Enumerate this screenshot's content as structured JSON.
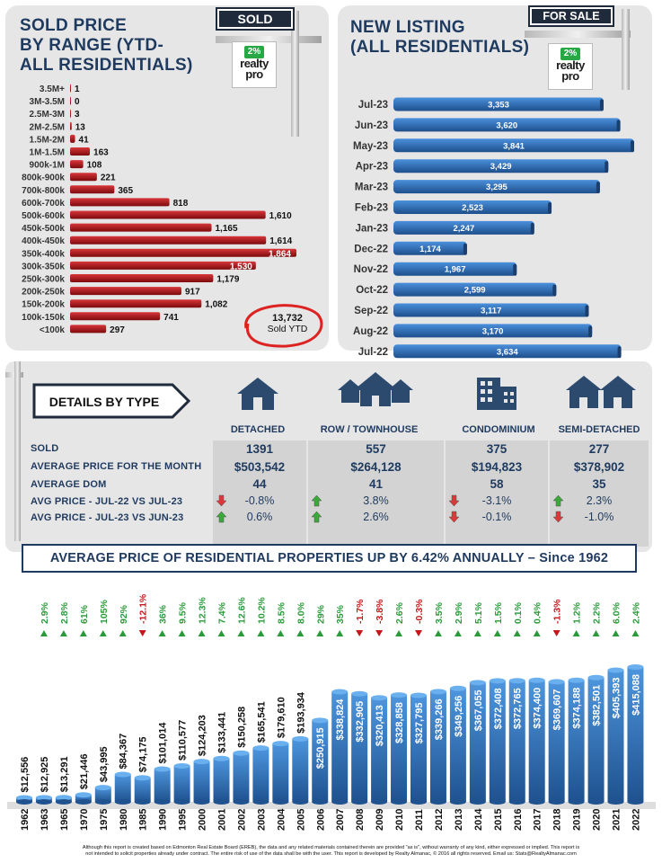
{
  "sold": {
    "title_lines": [
      "SOLD PRICE",
      "BY RANGE (YTD-",
      "ALL RESIDENTIALS)"
    ],
    "sign_label": "SOLD",
    "logo_pct": "2%",
    "logo_line1": "realty",
    "logo_line2": "pro",
    "total_value": "13,732",
    "total_label": "Sold YTD"
  },
  "new_listing": {
    "title_lines": [
      "NEW LISTING",
      "(ALL RESIDENTIALS)"
    ],
    "sign_label": "FOR SALE",
    "logo_pct": "2%",
    "logo_line1": "realty",
    "logo_line2": "pro"
  },
  "details": {
    "heading": "DETAILS BY TYPE",
    "columns": [
      "DETACHED",
      "ROW / TOWNHOUSE",
      "CONDOMINIUM",
      "SEMI-DETACHED"
    ],
    "row_labels": [
      "SOLD",
      "AVERAGE PRICE FOR THE MONTH",
      "AVERAGE DOM",
      "AVG PRICE - JUL-22 VS JUL-23",
      "AVG PRICE - JUL-23 VS JUN-23"
    ],
    "sold": [
      "1391",
      "557",
      "375",
      "277"
    ],
    "avg_price": [
      "$503,542",
      "$264,128",
      "$194,823",
      "$378,902"
    ],
    "avg_dom": [
      "44",
      "41",
      "58",
      "35"
    ],
    "yoy": [
      {
        "dir": "down",
        "text": "-0.8%"
      },
      {
        "dir": "up",
        "text": "3.8%"
      },
      {
        "dir": "down",
        "text": "-3.1%"
      },
      {
        "dir": "up",
        "text": "2.3%"
      }
    ],
    "mom": [
      {
        "dir": "up",
        "text": "0.6%"
      },
      {
        "dir": "up",
        "text": "2.6%"
      },
      {
        "dir": "down",
        "text": "-0.1%"
      },
      {
        "dir": "down",
        "text": "-1.0%"
      }
    ],
    "colors": {
      "up": "#3aa93a",
      "down": "#d9393a"
    }
  },
  "banner": {
    "text": "AVERAGE PRICE OF RESIDENTIAL PROPERTIES UP BY 6.42% ANNUALLY – Since 1962"
  },
  "footer": {
    "line1": "Although this report is created based on Edmonton Real Estate Board (EREB), the data and any related materials contained therein are provided \"as is\", without warranty of any kind, either expressed or implied.  This report is",
    "line2": "not intended to solicit properties already under contract.  The entire risk of use of the data shall be with the user.  This report is developed by Realty Almanac, © 2016 all rights reserved. Email us: Stats@RealtyAlmanac.com"
  },
  "chart_data": [
    {
      "type": "bar",
      "orientation": "horizontal",
      "title": "SOLD PRICE BY RANGE (YTD-ALL RESIDENTIALS)",
      "categories": [
        "3.5M+",
        "3M-3.5M",
        "2.5M-3M",
        "2M-2.5M",
        "1.5M-2M",
        "1M-1.5M",
        "900k-1M",
        "800k-900k",
        "700k-800k",
        "600k-700k",
        "500k-600k",
        "450k-500k",
        "400k-450k",
        "350k-400k",
        "300k-350k",
        "250k-300k",
        "200k-250k",
        "150k-200k",
        "100k-150k",
        "<100k"
      ],
      "values": [
        1,
        0,
        3,
        13,
        41,
        163,
        108,
        221,
        365,
        818,
        1610,
        1165,
        1614,
        1864,
        1530,
        1179,
        917,
        1082,
        741,
        297
      ],
      "labels": [
        "1",
        "0",
        "3",
        "13",
        "41",
        "163",
        "108",
        "221",
        "365",
        "818",
        "1,610",
        "1,165",
        "1,614",
        "1,864",
        "1,530",
        "1,179",
        "917",
        "1,082",
        "741",
        "297"
      ],
      "max": 1864,
      "color": "#a30f12"
    },
    {
      "type": "bar",
      "orientation": "horizontal",
      "title": "NEW LISTING (ALL RESIDENTIALS)",
      "categories": [
        "Jul-23",
        "Jun-23",
        "May-23",
        "Apr-23",
        "Mar-23",
        "Feb-23",
        "Jan-23",
        "Dec-22",
        "Nov-22",
        "Oct-22",
        "Sep-22",
        "Aug-22",
        "Jul-22"
      ],
      "values": [
        3353,
        3620,
        3841,
        3429,
        3295,
        2523,
        2247,
        1174,
        1967,
        2599,
        3117,
        3170,
        3634
      ],
      "labels": [
        "3,353",
        "3,620",
        "3,841",
        "3,429",
        "3,295",
        "2,523",
        "2,247",
        "1,174",
        "1,967",
        "2,599",
        "3,117",
        "3,170",
        "3,634"
      ],
      "max": 3841,
      "color": "#2e6db4"
    },
    {
      "type": "bar",
      "orientation": "vertical",
      "title": "AVERAGE PRICE OF RESIDENTIAL PROPERTIES UP BY 6.42% ANNUALLY – Since 1962",
      "categories": [
        "1962",
        "1963",
        "1965",
        "1970",
        "1975",
        "1980",
        "1985",
        "1990",
        "1995",
        "2000",
        "2001",
        "2002",
        "2003",
        "2004",
        "2005",
        "2006",
        "2007",
        "2008",
        "2009",
        "2010",
        "2011",
        "2012",
        "2013",
        "2014",
        "2015",
        "2016",
        "2017",
        "2018",
        "2019",
        "2020",
        "2021",
        "2022"
      ],
      "values": [
        12556,
        12925,
        13291,
        21446,
        43995,
        84367,
        74175,
        101014,
        110577,
        124203,
        133441,
        150258,
        165541,
        179610,
        193934,
        250915,
        338824,
        332905,
        320413,
        328858,
        327795,
        339266,
        349256,
        367055,
        372408,
        372765,
        374400,
        369607,
        374188,
        382501,
        405393,
        415088
      ],
      "labels": [
        "$12,556",
        "$12,925",
        "$13,291",
        "$21,446",
        "$43,995",
        "$84,367",
        "$74,175",
        "$101,014",
        "$110,577",
        "$124,203",
        "$133,441",
        "$150,258",
        "$165,541",
        "$179,610",
        "$193,934",
        "$250,915",
        "$338,824",
        "$332,905",
        "$320,413",
        "$328,858",
        "$327,795",
        "$339,266",
        "$349,256",
        "$367,055",
        "$372,408",
        "$372,765",
        "$374,400",
        "$369,607",
        "$374,188",
        "$382,501",
        "$405,393",
        "$415,088"
      ],
      "changes": [
        "",
        "2.9%",
        "2.8%",
        "61%",
        "105%",
        "92%",
        "-12.1%",
        "36%",
        "9.5%",
        "12.3%",
        "7.4%",
        "12.6%",
        "10.2%",
        "8.5%",
        "8.0%",
        "29%",
        "35%",
        "-1.7%",
        "-3.8%",
        "2.6%",
        "-0.3%",
        "3.5%",
        "2.9%",
        "5.1%",
        "1.5%",
        "0.1%",
        "0.4%",
        "-1.3%",
        "1.2%",
        "2.2%",
        "6.0%",
        "2.4%"
      ],
      "max": 415088,
      "color": "#2e6db4",
      "color_new": "#3e85cc"
    }
  ]
}
